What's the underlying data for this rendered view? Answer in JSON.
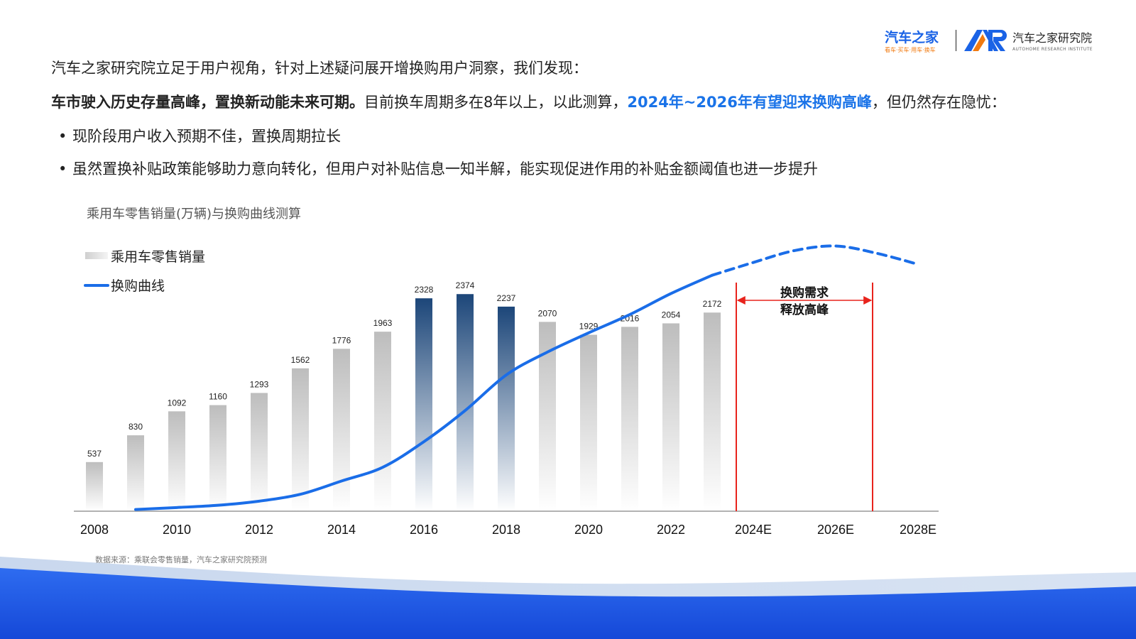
{
  "logo": {
    "brand_name": "汽车之家",
    "brand_slogan": "看车·买车·用车·换车",
    "ar_mark": "AR",
    "institute_name": "汽车之家研究院",
    "institute_en": "AUTOHOME RESEARCH INSTITUTE"
  },
  "intro": "汽车之家研究院立足于用户视角，针对上述疑问展开增换购用户洞察，我们发现：",
  "headline": {
    "bold": "车市驶入历史存量高峰，置换新动能未来可期。",
    "normal1": "目前换车周期多在8年以上，以此测算，",
    "blue": "2024年~2026年有望迎来换购高峰",
    "normal2": "，但仍然存在隐忧："
  },
  "bullets": [
    "现阶段用户收入预期不佳，置换周期拉长",
    "虽然置换补贴政策能够助力意向转化，但用户对补贴信息一知半解，能实现促进作用的补贴金额阈值也进一步提升"
  ],
  "bullet_symbol": "•",
  "source": "数据来源：乘联会零售销量，汽车之家研究院预测",
  "chart_data": {
    "type": "bar",
    "title": "乘用车零售销量(万辆)与换购曲线测算",
    "legend": [
      "乘用车零售销量",
      "换购曲线"
    ],
    "legend_position": "top-left",
    "categories": [
      "2008",
      "2009",
      "2010",
      "2011",
      "2012",
      "2013",
      "2014",
      "2015",
      "2016",
      "2017",
      "2018",
      "2019",
      "2020",
      "2021",
      "2022",
      "2023"
    ],
    "values": [
      537,
      830,
      1092,
      1160,
      1293,
      1562,
      1776,
      1963,
      2328,
      2374,
      2237,
      2070,
      1929,
      2016,
      2054,
      2172
    ],
    "highlight_years": [
      "2016",
      "2017",
      "2018"
    ],
    "x_tick_labels": [
      "2008",
      "2010",
      "2012",
      "2014",
      "2016",
      "2018",
      "2020",
      "2022",
      "2024E",
      "2026E",
      "2028E"
    ],
    "x_range": [
      2008,
      2028
    ],
    "ylim": [
      0,
      2500
    ],
    "curve": {
      "name": "换购曲线",
      "actual": [
        [
          2009,
          18
        ],
        [
          2010,
          40
        ],
        [
          2011,
          65
        ],
        [
          2012,
          110
        ],
        [
          2013,
          185
        ],
        [
          2014,
          330
        ],
        [
          2015,
          480
        ],
        [
          2016,
          760
        ],
        [
          2017,
          1100
        ],
        [
          2018,
          1490
        ],
        [
          2019,
          1740
        ],
        [
          2020,
          1950
        ],
        [
          2021,
          2150
        ],
        [
          2022,
          2380
        ],
        [
          2023,
          2580
        ]
      ],
      "forecast": [
        [
          2023,
          2580
        ],
        [
          2024,
          2720
        ],
        [
          2025,
          2850
        ],
        [
          2026,
          2900
        ],
        [
          2027,
          2820
        ],
        [
          2028,
          2700
        ]
      ]
    },
    "annotation": {
      "lines": [
        "换购需求",
        "释放高峰"
      ],
      "from": "2024",
      "to": "2027",
      "color": "#e8231c"
    },
    "colors": {
      "bar_gray": "#c0c0c0",
      "bar_blue": "#1d4b7d",
      "curve": "#1a6de8"
    }
  }
}
